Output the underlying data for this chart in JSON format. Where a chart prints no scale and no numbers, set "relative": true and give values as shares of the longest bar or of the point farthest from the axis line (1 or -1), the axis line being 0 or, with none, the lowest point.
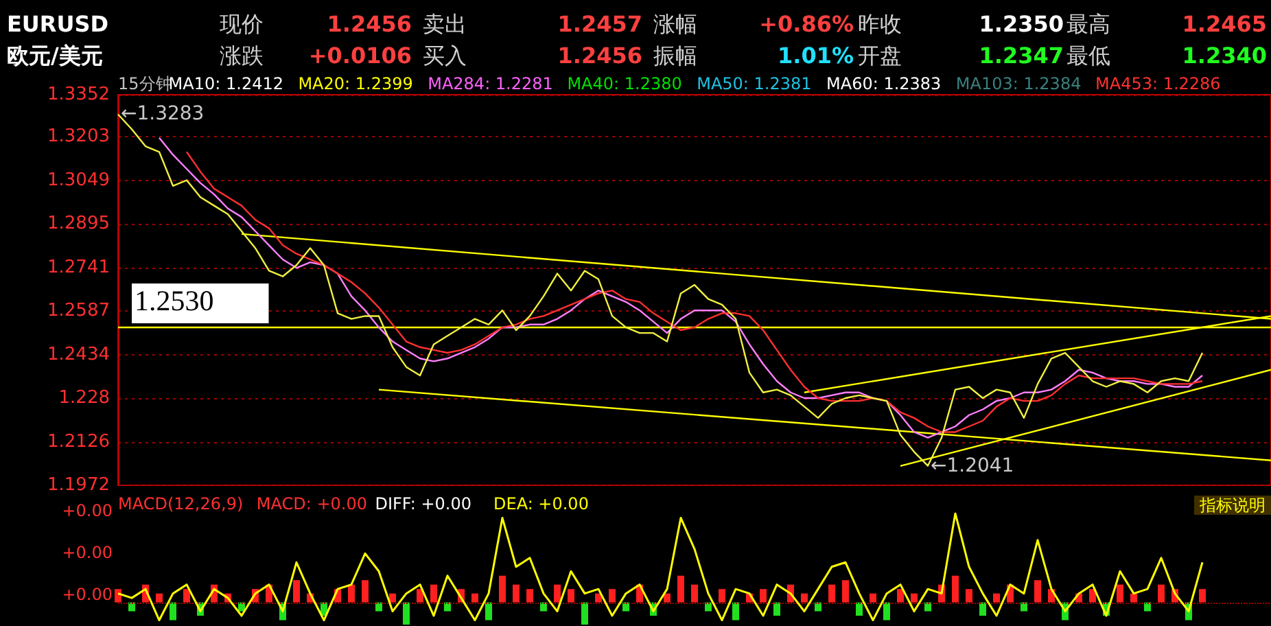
{
  "chart_data": [
    {
      "type": "other",
      "annotations": [
        "EURUSD",
        "现价",
        "1.2456",
        "卖出",
        "1.2457",
        "涨幅",
        "+0.86%",
        "昨收",
        "1.2350",
        "最高",
        "1.2465",
        "欧元/美元",
        "涨跌",
        "+0.0106",
        "买入",
        "1.2456",
        "振幅",
        "1.01%",
        "开盘",
        "1.2347",
        "最低",
        "1.2340"
      ]
    },
    {
      "type": "line",
      "categories": [
        null,
        null,
        null,
        null,
        null,
        null,
        null,
        null,
        null,
        null,
        null,
        null,
        null,
        null,
        null,
        null,
        null,
        null,
        null,
        null,
        null,
        null,
        null,
        null,
        null,
        null,
        null,
        null,
        null,
        null,
        null,
        null,
        null,
        null,
        null,
        null,
        null,
        null,
        null,
        null,
        null,
        null,
        null,
        null,
        null,
        null,
        null,
        null,
        null,
        null,
        null,
        null,
        null,
        null,
        null,
        null,
        null,
        null,
        null,
        null,
        null,
        null,
        null,
        null,
        null,
        null,
        null,
        null,
        null,
        null,
        null,
        null,
        null,
        null,
        null,
        null,
        null,
        null,
        null,
        null,
        null,
        null,
        null,
        null,
        null
      ],
      "series": [
        {
          "color": "#f0f040",
          "values": [
            1.3283,
            1.323,
            1.317,
            1.315,
            1.303,
            1.305,
            1.299,
            1.296,
            1.293,
            1.287,
            1.281,
            1.273,
            1.271,
            1.275,
            1.281,
            1.275,
            1.258,
            1.256,
            1.257,
            1.257,
            1.246,
            1.239,
            1.236,
            1.247,
            1.25,
            1.253,
            1.256,
            1.254,
            1.259,
            1.252,
            1.257,
            1.264,
            1.272,
            1.266,
            1.273,
            1.27,
            1.257,
            1.253,
            1.251,
            1.251,
            1.248,
            1.265,
            1.268,
            1.263,
            1.261,
            1.256,
            1.237,
            1.23,
            1.231,
            1.229,
            1.225,
            1.221,
            1.226,
            1.228,
            1.229,
            1.228,
            1.227,
            1.215,
            1.209,
            1.2041,
            1.214,
            1.231,
            1.232,
            1.228,
            1.231,
            1.23,
            1.221,
            1.233,
            1.242,
            1.244,
            1.239,
            1.234,
            1.232,
            1.234,
            1.233,
            1.23,
            1.234,
            1.235,
            1.234,
            1.244,
            null,
            null,
            null,
            null,
            null
          ]
        },
        {
          "color": "#ff3030",
          "values": [
            null,
            null,
            null,
            null,
            null,
            1.315,
            1.308,
            1.302,
            1.299,
            1.296,
            1.291,
            1.288,
            1.282,
            1.279,
            1.277,
            1.275,
            1.272,
            1.269,
            1.265,
            1.26,
            1.254,
            1.248,
            1.246,
            1.245,
            1.244,
            1.245,
            1.247,
            1.25,
            1.253,
            1.254,
            1.256,
            1.257,
            1.259,
            1.261,
            1.263,
            1.265,
            1.266,
            1.263,
            1.262,
            1.258,
            1.255,
            1.252,
            1.253,
            1.256,
            1.258,
            1.258,
            1.257,
            1.252,
            1.245,
            1.238,
            1.232,
            1.228,
            1.227,
            1.227,
            1.227,
            1.228,
            1.227,
            1.223,
            1.221,
            1.218,
            1.216,
            1.216,
            1.218,
            1.22,
            1.225,
            1.228,
            1.227,
            1.227,
            1.229,
            1.233,
            1.236,
            1.235,
            1.235,
            1.235,
            1.235,
            1.234,
            1.233,
            1.233,
            1.233,
            1.234,
            null,
            null,
            null,
            null,
            null
          ]
        },
        {
          "color": "#ff80ff",
          "values": [
            null,
            null,
            null,
            1.32,
            1.314,
            1.309,
            1.304,
            1.3,
            1.295,
            1.292,
            1.287,
            1.282,
            1.277,
            1.274,
            1.276,
            1.275,
            1.272,
            1.264,
            1.259,
            1.253,
            1.248,
            1.245,
            1.242,
            1.241,
            1.242,
            1.244,
            1.246,
            1.249,
            1.253,
            1.253,
            1.254,
            1.254,
            1.256,
            1.259,
            1.263,
            1.266,
            1.264,
            1.262,
            1.259,
            1.255,
            1.251,
            1.256,
            1.259,
            1.259,
            1.259,
            1.255,
            1.247,
            1.24,
            1.234,
            1.23,
            1.228,
            1.228,
            1.229,
            1.23,
            1.23,
            1.228,
            1.227,
            1.222,
            1.216,
            1.214,
            1.216,
            1.218,
            1.222,
            1.224,
            1.227,
            1.228,
            1.23,
            1.23,
            1.231,
            1.234,
            1.238,
            1.237,
            1.235,
            1.234,
            1.234,
            1.233,
            1.233,
            1.232,
            1.232,
            1.236,
            null,
            null,
            null,
            null,
            null
          ]
        },
        {
          "color": "#ffff00",
          "values": [
            null,
            null,
            null,
            null,
            null,
            null,
            null,
            null,
            null,
            1.286,
            null,
            null,
            null,
            null,
            null,
            null,
            null,
            null,
            null,
            null,
            null,
            null,
            null,
            null,
            null,
            null,
            null,
            null,
            null,
            null,
            null,
            null,
            null,
            null,
            null,
            null,
            null,
            null,
            null,
            null,
            null,
            null,
            null,
            null,
            null,
            null,
            null,
            null,
            null,
            null,
            null,
            null,
            null,
            null,
            null,
            null,
            null,
            null,
            null,
            null,
            null,
            null,
            null,
            null,
            null,
            null,
            null,
            null,
            null,
            null,
            null,
            null,
            null,
            null,
            null,
            null,
            null,
            null,
            null,
            null,
            null,
            null,
            null,
            null,
            1.256
          ]
        },
        {
          "color": "#ffff00",
          "values": [
            null,
            null,
            null,
            null,
            null,
            null,
            null,
            null,
            null,
            null,
            null,
            null,
            null,
            null,
            null,
            null,
            null,
            null,
            null,
            1.231,
            null,
            null,
            null,
            null,
            null,
            null,
            null,
            null,
            null,
            null,
            null,
            null,
            null,
            null,
            null,
            null,
            null,
            null,
            null,
            null,
            null,
            null,
            null,
            null,
            null,
            null,
            null,
            null,
            null,
            null,
            null,
            null,
            null,
            null,
            null,
            null,
            null,
            null,
            null,
            null,
            null,
            null,
            null,
            null,
            null,
            null,
            null,
            null,
            null,
            null,
            null,
            null,
            null,
            null,
            null,
            null,
            null,
            null,
            null,
            null,
            null,
            null,
            null,
            null,
            1.206
          ]
        },
        {
          "color": "#ffff00",
          "values": [
            null,
            null,
            null,
            null,
            null,
            null,
            null,
            null,
            null,
            null,
            null,
            null,
            null,
            null,
            null,
            null,
            null,
            null,
            null,
            null,
            null,
            null,
            null,
            null,
            null,
            null,
            null,
            null,
            null,
            null,
            null,
            null,
            null,
            null,
            null,
            null,
            null,
            null,
            null,
            null,
            null,
            null,
            null,
            null,
            null,
            null,
            null,
            null,
            null,
            null,
            1.23,
            null,
            null,
            null,
            null,
            null,
            null,
            null,
            null,
            null,
            null,
            null,
            null,
            null,
            null,
            null,
            null,
            null,
            null,
            null,
            null,
            null,
            null,
            null,
            null,
            null,
            null,
            null,
            null,
            null,
            null,
            null,
            null,
            null,
            1.257
          ]
        },
        {
          "color": "#ffff00",
          "values": [
            null,
            null,
            null,
            null,
            null,
            null,
            null,
            null,
            null,
            null,
            null,
            null,
            null,
            null,
            null,
            null,
            null,
            null,
            null,
            null,
            null,
            null,
            null,
            null,
            null,
            null,
            null,
            null,
            null,
            null,
            null,
            null,
            null,
            null,
            null,
            null,
            null,
            null,
            null,
            null,
            null,
            null,
            null,
            null,
            null,
            null,
            null,
            null,
            null,
            null,
            null,
            null,
            null,
            null,
            null,
            null,
            null,
            1.204,
            null,
            null,
            null,
            null,
            null,
            null,
            null,
            null,
            null,
            null,
            null,
            null,
            null,
            null,
            null,
            null,
            null,
            null,
            null,
            null,
            null,
            null,
            null,
            null,
            null,
            null,
            1.238
          ]
        }
      ],
      "ylim": [
        1.1972,
        1.3352
      ],
      "yticks": [
        1.3352,
        1.3203,
        1.3049,
        1.2895,
        1.2741,
        1.2587,
        1.2434,
        1.228,
        1.2126,
        1.1972
      ],
      "grid": "y",
      "tick_labels": "y",
      "marker": "none",
      "line_style": "solid",
      "ref_lines": [
        {
          "axis": "y",
          "value": 1.253,
          "label": "1.2530",
          "color": "#ffff00"
        }
      ],
      "annotations": [
        "←1.3283",
        "←1.2041",
        "15分钟",
        "MA10: 1.2412",
        "MA20: 1.2399",
        "MA284: 1.2281",
        "MA40: 1.2380",
        "MA50: 1.2381",
        "MA60: 1.2383",
        "MA103: 1.2384",
        "MA453: 1.2286"
      ]
    },
    {
      "type": "bar",
      "relative": true,
      "tick_labels": false,
      "categories": [
        null,
        null,
        null,
        null,
        null,
        null,
        null,
        null,
        null,
        null,
        null,
        null,
        null,
        null,
        null,
        null,
        null,
        null,
        null,
        null,
        null,
        null,
        null,
        null,
        null,
        null,
        null,
        null,
        null,
        null,
        null,
        null,
        null,
        null,
        null,
        null,
        null,
        null,
        null,
        null,
        null,
        null,
        null,
        null,
        null,
        null,
        null,
        null,
        null,
        null,
        null,
        null,
        null,
        null,
        null,
        null,
        null,
        null,
        null,
        null,
        null,
        null,
        null,
        null,
        null,
        null,
        null,
        null,
        null,
        null,
        null,
        null,
        null,
        null,
        null,
        null,
        null,
        null,
        null,
        null,
        null,
        null,
        null,
        null,
        null
      ],
      "series": [
        {
          "color": "#ff2020",
          "values": [
            0.15,
            null,
            0.2,
            0.1,
            null,
            0.15,
            null,
            0.2,
            0.1,
            null,
            0.15,
            0.2,
            null,
            0.25,
            0.1,
            null,
            0.15,
            0.2,
            0.25,
            null,
            0.1,
            null,
            0.15,
            0.2,
            null,
            0.15,
            0.1,
            null,
            0.3,
            0.2,
            0.15,
            null,
            0.2,
            0.15,
            null,
            0.1,
            0.15,
            null,
            0.2,
            null,
            0.1,
            0.3,
            0.2,
            null,
            0.15,
            null,
            0.1,
            0.15,
            null,
            0.2,
            0.1,
            null,
            0.2,
            0.25,
            null,
            0.1,
            null,
            0.15,
            0.1,
            null,
            0.2,
            0.3,
            0.15,
            null,
            0.1,
            0.2,
            null,
            0.25,
            0.15,
            null,
            0.1,
            0.15,
            null,
            0.2,
            0.1,
            null,
            0.2,
            0.15,
            null,
            0.15,
            null,
            null,
            null,
            null,
            null
          ]
        },
        {
          "color": "#20e020",
          "values": [
            null,
            -0.1,
            null,
            null,
            -0.2,
            null,
            -0.15,
            null,
            null,
            -0.1,
            null,
            null,
            -0.2,
            null,
            null,
            -0.15,
            null,
            null,
            null,
            -0.1,
            null,
            -0.25,
            null,
            null,
            -0.1,
            null,
            null,
            -0.2,
            null,
            null,
            null,
            -0.1,
            null,
            null,
            -0.25,
            null,
            null,
            -0.1,
            null,
            -0.15,
            null,
            null,
            null,
            -0.1,
            null,
            -0.2,
            null,
            null,
            -0.15,
            null,
            null,
            -0.1,
            null,
            null,
            -0.15,
            null,
            -0.2,
            null,
            null,
            -0.1,
            null,
            null,
            null,
            -0.15,
            null,
            null,
            -0.1,
            null,
            null,
            -0.2,
            null,
            null,
            -0.15,
            null,
            null,
            -0.1,
            null,
            null,
            -0.2,
            null,
            null,
            null,
            null,
            null,
            null
          ]
        },
        {
          "type": "line",
          "color": "#ffff00",
          "values": [
            0.1,
            0.05,
            0.15,
            -0.2,
            0.1,
            0.2,
            -0.1,
            0.15,
            0.05,
            -0.15,
            0.1,
            0.2,
            -0.1,
            0.45,
            0.1,
            -0.2,
            0.15,
            0.2,
            0.55,
            0.35,
            -0.1,
            0.1,
            0.2,
            -0.15,
            0.3,
            0.05,
            -0.2,
            0.1,
            0.95,
            0.4,
            0.5,
            0.1,
            -0.1,
            0.35,
            0.1,
            0.15,
            -0.15,
            0.1,
            0.2,
            -0.1,
            0.15,
            0.95,
            0.6,
            0.1,
            -0.2,
            0.15,
            0.1,
            -0.15,
            0.2,
            0.1,
            -0.1,
            0.15,
            0.4,
            0.45,
            0.1,
            -0.2,
            0.1,
            0.2,
            -0.1,
            0.15,
            0.1,
            1,
            0.4,
            0.1,
            -0.15,
            0.2,
            0.1,
            0.7,
            0.15,
            -0.1,
            0.1,
            0.2,
            -0.15,
            0.35,
            0.1,
            0.15,
            0.5,
            0.1,
            -0.1,
            0.45,
            null,
            null,
            null,
            null,
            null
          ]
        }
      ],
      "ref_lines": [
        {
          "axis": "y",
          "value": 0,
          "color": "#a00000",
          "line_style": "dotted"
        }
      ],
      "annotations": [
        "MACD(12,26,9)",
        "MACD: +0.00",
        "DIFF: +0.00",
        "DEA: +0.00",
        "+0.00",
        "+0.00",
        "+0.00",
        "指标说明"
      ]
    }
  ]
}
